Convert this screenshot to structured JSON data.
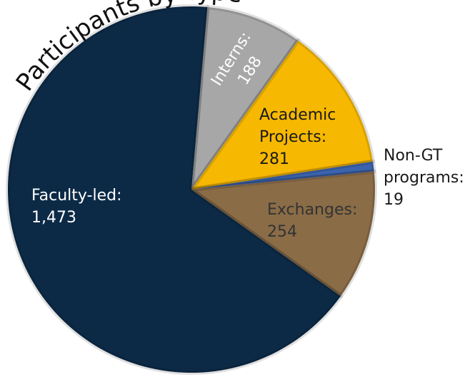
{
  "chart_data": {
    "type": "pie",
    "title": "Participants by Type",
    "categories": [
      "Interns:",
      "Academic Projects:",
      "Non-GT programs:",
      "Exchanges:",
      "Faculty-led:"
    ],
    "values": [
      188,
      281,
      19,
      254,
      1473
    ],
    "value_labels": [
      "188",
      "281",
      "19",
      "254",
      "1,473"
    ],
    "colors": [
      "#a7a7a8",
      "#f6b800",
      "#3c63ad",
      "#8a6c47",
      "#0c2a46"
    ]
  }
}
